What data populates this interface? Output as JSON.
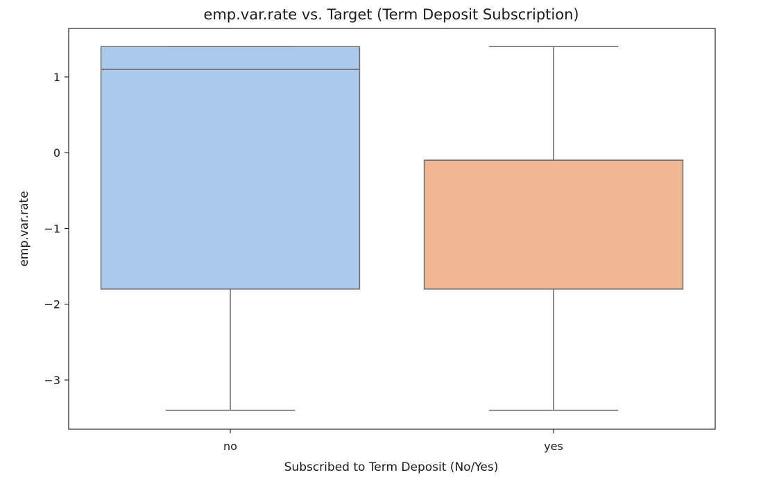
{
  "chart_data": {
    "type": "box",
    "title": "emp.var.rate vs. Target (Term Deposit Subscription)",
    "xlabel": "Subscribed to Term Deposit (No/Yes)",
    "ylabel": "emp.var.rate",
    "categories": [
      "no",
      "yes"
    ],
    "boxes": [
      {
        "category": "no",
        "whisker_low": -3.4,
        "q1": -1.8,
        "median": 1.1,
        "q3": 1.4,
        "whisker_high": 1.4,
        "color": "#abc9ea"
      },
      {
        "category": "yes",
        "whisker_low": -3.4,
        "q1": -1.8,
        "median": -0.1,
        "q3": -0.1,
        "whisker_high": 1.4,
        "color": "#efb792"
      }
    ],
    "yticks": [
      1,
      0,
      -1,
      -2,
      -3
    ],
    "ylim": [
      -3.65,
      1.64
    ],
    "grid": false,
    "colors": {
      "box_edge": "#727272",
      "axes_edge": "#262626",
      "text": "#1a1a1a"
    }
  }
}
